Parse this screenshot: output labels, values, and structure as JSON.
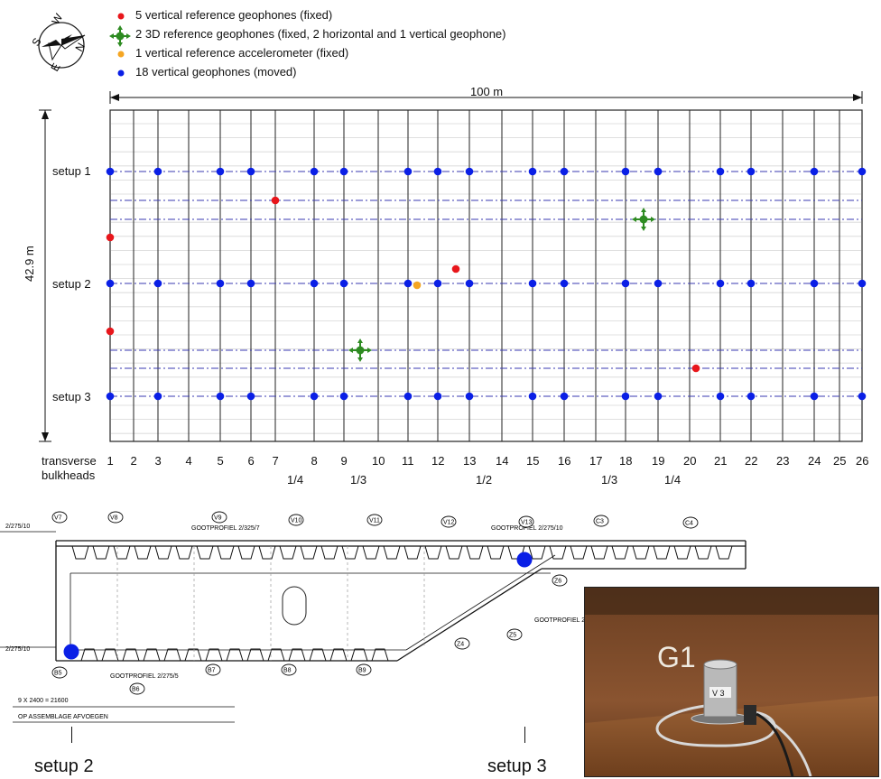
{
  "compass": {
    "letters": [
      "N",
      "E",
      "S",
      "W"
    ]
  },
  "legend": [
    {
      "text": "5 vertical reference geophones (fixed)",
      "color": "#e8161b",
      "icon": "red-dot"
    },
    {
      "text": "2 3D reference geophones (fixed, 2 horizontal and 1 vertical geophone)",
      "color": "#2e8b22",
      "icon": "green-3d-marker"
    },
    {
      "text": "1 vertical reference accelerometer (fixed)",
      "color": "#f5a623",
      "icon": "orange-dot"
    },
    {
      "text": "18 vertical geophones (moved)",
      "color": "#0a1fe6",
      "icon": "blue-dot"
    }
  ],
  "dimensions": {
    "width": "100 m",
    "height": "42.9 m"
  },
  "setups": [
    "setup 1",
    "setup 2",
    "setup 3"
  ],
  "bulkheads": {
    "label_line1": "transverse",
    "label_line2": "bulkheads",
    "numbers": [
      "1",
      "2",
      "3",
      "4",
      "5",
      "6",
      "7",
      "8",
      "9",
      "10",
      "11",
      "12",
      "13",
      "14",
      "15",
      "16",
      "17",
      "18",
      "19",
      "20",
      "21",
      "22",
      "23",
      "24",
      "25",
      "26"
    ],
    "fractions": [
      "1/4",
      "1/3",
      "1/2",
      "1/3",
      "1/4"
    ]
  },
  "drawing_labels": {
    "top_left": "2/275/10",
    "gootprofiel_1": "GOOTPROFIEL 2/325/7",
    "gootprofiel_2": "GOOTPROFIEL 2/275/10",
    "gootprofiel_3": "GOOTPROFIEL 2/",
    "gootprofiel_bottom": "GOOTPROFIEL 2/275/5",
    "left_mid": "2/275/10",
    "dim_text": "9 X 2400 = 21600",
    "assembly_text": "OP ASSEMBLAGE AFVOEGEN",
    "tags": [
      "V7",
      "V8",
      "V9",
      "V10",
      "V11",
      "V12",
      "V13",
      "C3",
      "C4",
      "Z6",
      "Z4",
      "Z5",
      "B5",
      "B6",
      "B7",
      "B8",
      "B9"
    ]
  },
  "photo": {
    "label_marking": "G1",
    "sensor_label": "V 3"
  },
  "bottom_labels": [
    "setup 2",
    "setup 3"
  ]
}
